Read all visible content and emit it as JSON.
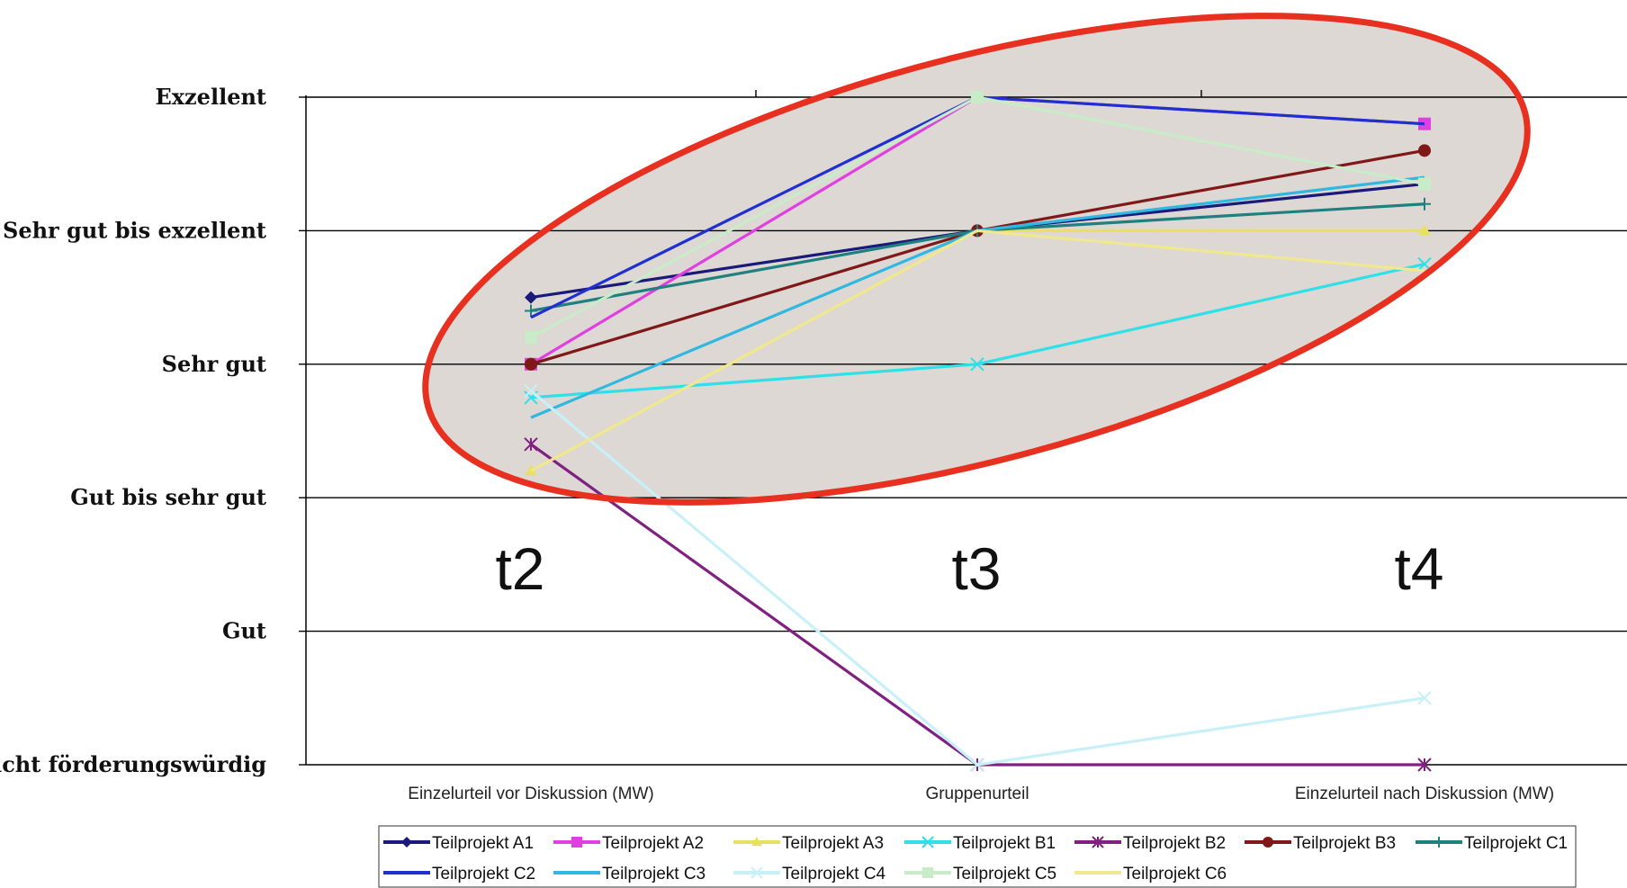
{
  "chart_data": {
    "type": "line",
    "title": "",
    "categories": [
      "Einzelurteil vor Diskussion (MW)",
      "Gruppenurteil",
      "Einzelurteil nach Diskussion (MW)"
    ],
    "y_levels": [
      "Nicht förderungswürdig",
      "Gut",
      "Gut bis sehr gut",
      "Sehr gut",
      "Sehr gut bis exzellent",
      "Exzellent"
    ],
    "ylim": [
      0,
      5
    ],
    "grid": true,
    "legend_position": "bottom",
    "time_labels": [
      "t2",
      "t3",
      "t4"
    ],
    "series": [
      {
        "name": "Teilprojekt  A1",
        "color": "#1a1a7a",
        "marker": "diamond",
        "values": [
          3.5,
          4.0,
          4.35
        ]
      },
      {
        "name": "Teilprojekt A2",
        "color": "#e040e0",
        "marker": "square",
        "values": [
          3.0,
          5.0,
          4.8
        ]
      },
      {
        "name": "Teilprojekt A3",
        "color": "#e8e060",
        "marker": "triangle",
        "values": [
          2.2,
          4.0,
          4.0
        ]
      },
      {
        "name": "Teilprojekt B1",
        "color": "#30e0e8",
        "marker": "x",
        "values": [
          2.75,
          3.0,
          3.75
        ]
      },
      {
        "name": "Teilprojekt B2",
        "color": "#802080",
        "marker": "star",
        "values": [
          2.4,
          0.0,
          0.0
        ]
      },
      {
        "name": "Teilprojekt B3",
        "color": "#801818",
        "marker": "circle",
        "values": [
          3.0,
          4.0,
          4.6
        ]
      },
      {
        "name": "Teilprojekt C1",
        "color": "#208080",
        "marker": "plus",
        "values": [
          3.4,
          4.0,
          4.2
        ]
      },
      {
        "name": "Teilprojekt C2",
        "color": "#2030d0",
        "marker": "none",
        "values": [
          3.35,
          5.0,
          4.8
        ]
      },
      {
        "name": "Teilprojekt C3",
        "color": "#30b8e0",
        "marker": "none",
        "values": [
          2.6,
          4.0,
          4.4
        ]
      },
      {
        "name": "Teilprojekt C4",
        "color": "#c8f0f8",
        "marker": "x",
        "values": [
          2.8,
          0.0,
          0.5
        ]
      },
      {
        "name": "Teilprojekt C5",
        "color": "#c8ecc8",
        "marker": "square",
        "values": [
          3.2,
          5.0,
          4.35
        ]
      },
      {
        "name": "Teilprojekt C6",
        "color": "#f0e890",
        "marker": "none",
        "values": [
          2.2,
          4.0,
          3.7
        ]
      }
    ],
    "annotation": {
      "shape": "ellipse",
      "color": "#e83020",
      "fill": "#ddd8d4"
    }
  }
}
